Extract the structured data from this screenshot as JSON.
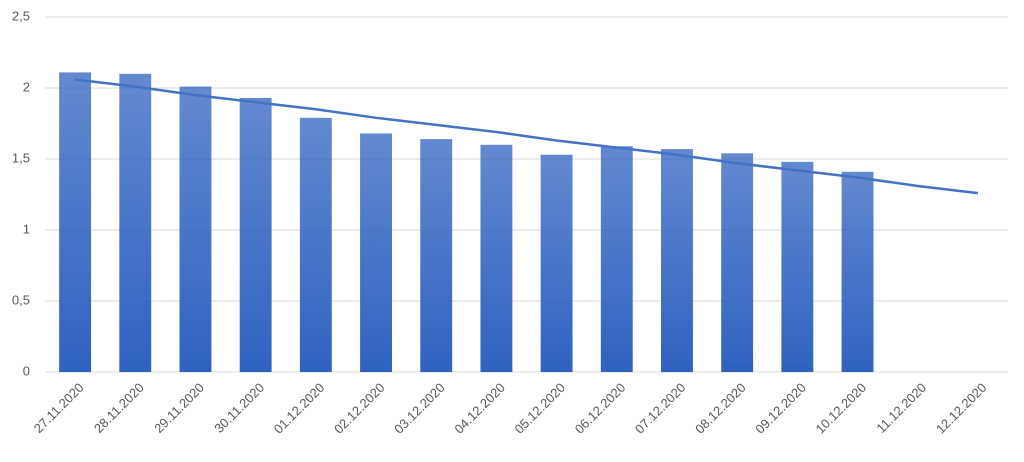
{
  "chart_data": {
    "type": "bar",
    "categories": [
      "27.11.2020",
      "28.11.2020",
      "29.11.2020",
      "30.11.2020",
      "01.12.2020",
      "02.12.2020",
      "03.12.2020",
      "04.12.2020",
      "05.12.2020",
      "06.12.2020",
      "07.12.2020",
      "08.12.2020",
      "09.12.2020",
      "10.12.2020",
      "11.12.2020",
      "12.12.2020"
    ],
    "series": [
      {
        "type": "bar",
        "color": "#2f62c0",
        "values": [
          2.11,
          2.1,
          2.01,
          1.93,
          1.79,
          1.68,
          1.64,
          1.6,
          1.53,
          1.59,
          1.57,
          1.54,
          1.48,
          1.41,
          null,
          null
        ]
      },
      {
        "type": "line",
        "color": "#4472c4",
        "values": [
          2.06,
          2.01,
          1.95,
          1.9,
          1.85,
          1.79,
          1.74,
          1.69,
          1.63,
          1.58,
          1.53,
          1.47,
          1.42,
          1.37,
          1.31,
          1.26
        ]
      }
    ],
    "ylim": [
      0,
      2.5
    ],
    "yticks": [
      0,
      {
        "value": 0.5,
        "label": "0,5"
      },
      1,
      {
        "value": 1.5,
        "label": "1,5"
      },
      2,
      {
        "value": 2.5,
        "label": "2,5"
      }
    ],
    "grid": true
  }
}
